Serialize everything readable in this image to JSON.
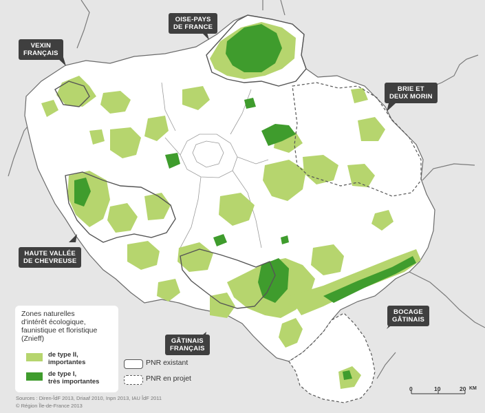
{
  "callouts": {
    "vexin": [
      "VEXIN",
      "FRANÇAIS"
    ],
    "oise": [
      "OISE-PAYS",
      "DE FRANCE"
    ],
    "brie": [
      "BRIE ET",
      "DEUX MORIN"
    ],
    "chevreuse": [
      "HAUTE VALLÉE",
      "DE CHEVREUSE"
    ],
    "gatinais_fr": [
      "GÂTINAIS",
      "FRANÇAIS"
    ],
    "bocage": [
      "BOCAGE",
      "GÂTINAIS"
    ]
  },
  "legend": {
    "title": [
      "Zones naturelles",
      "d'intérêt écologique,",
      "faunistique et floristique",
      "(Znieff)"
    ],
    "type2": [
      "de type II,",
      "importantes"
    ],
    "type1": [
      "de type I,",
      "très importantes"
    ],
    "pnr_existing": "PNR existant",
    "pnr_project": "PNR en projet"
  },
  "sources": [
    "Sources : Diren-ÎdF 2013, Driaaf 2010, Inpn 2013, IAU ÎdF 2011",
    "© Région Île-de-France 2013"
  ],
  "scale": {
    "ticks": [
      "0",
      "10",
      "20"
    ],
    "unit": "KM"
  },
  "colors": {
    "type2": "#b6d56e",
    "type1": "#3f9c2d",
    "region": "#ffffff",
    "outside": "#e6e6e6",
    "border": "#555555",
    "callout": "#3f3f3f"
  }
}
